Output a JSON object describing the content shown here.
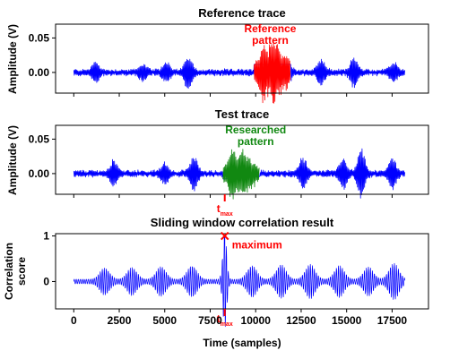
{
  "colors": {
    "trace": "#0000ff",
    "reference": "#ff0000",
    "researched": "#118811",
    "tmax": "#ff0000",
    "axis": "#000000"
  },
  "x_label": "Time (samples)",
  "x_ticks": [
    "0",
    "2500",
    "5000",
    "7500",
    "10000",
    "12500",
    "15000",
    "17500"
  ],
  "tmax_label": "t",
  "tmax_sub": "max",
  "chart_data": [
    {
      "type": "line",
      "title": "Reference trace",
      "ylabel": "Amplitude (V)",
      "xlim": [
        -1000,
        19500
      ],
      "ylim": [
        -0.03,
        0.07
      ],
      "y_ticks": [
        0.0,
        0.05
      ],
      "y_tick_labels": [
        "0.00",
        "0.05"
      ],
      "annotation": {
        "text_line1": "Reference",
        "text_line2": "pattern",
        "x": 10800,
        "y": 0.058
      },
      "highlight": {
        "name": "Reference pattern",
        "x_range": [
          9900,
          11900
        ]
      },
      "signal": {
        "x_range": [
          0,
          18200
        ],
        "baseline_amplitude": 0.004,
        "bursts": [
          {
            "x": 1200,
            "amplitude": 0.012
          },
          {
            "x": 3800,
            "amplitude": 0.01
          },
          {
            "x": 5100,
            "amplitude": 0.013
          },
          {
            "x": 6300,
            "amplitude": 0.022
          },
          {
            "x": 10400,
            "amplitude": 0.042
          },
          {
            "x": 11000,
            "amplitude": 0.045
          },
          {
            "x": 11700,
            "amplitude": 0.02
          },
          {
            "x": 13600,
            "amplitude": 0.017
          },
          {
            "x": 15400,
            "amplitude": 0.02
          },
          {
            "x": 17600,
            "amplitude": 0.012
          }
        ]
      }
    },
    {
      "type": "line",
      "title": "Test trace",
      "ylabel": "Amplitude (V)",
      "xlim": [
        -1000,
        19500
      ],
      "ylim": [
        -0.03,
        0.07
      ],
      "y_ticks": [
        0.0,
        0.05
      ],
      "y_tick_labels": [
        "0.00",
        "0.05"
      ],
      "annotation": {
        "text_line1": "Researched",
        "text_line2": "pattern",
        "x": 10000,
        "y": 0.058
      },
      "highlight": {
        "name": "Researched pattern",
        "x_range": [
          8200,
          10200
        ]
      },
      "signal": {
        "x_range": [
          0,
          18200
        ],
        "baseline_amplitude": 0.004,
        "bursts": [
          {
            "x": 2200,
            "amplitude": 0.017
          },
          {
            "x": 5000,
            "amplitude": 0.013
          },
          {
            "x": 6600,
            "amplitude": 0.022
          },
          {
            "x": 8700,
            "amplitude": 0.037
          },
          {
            "x": 9300,
            "amplitude": 0.032
          },
          {
            "x": 12600,
            "amplitude": 0.02
          },
          {
            "x": 14800,
            "amplitude": 0.02
          },
          {
            "x": 15800,
            "amplitude": 0.032
          },
          {
            "x": 17500,
            "amplitude": 0.02
          }
        ]
      }
    },
    {
      "type": "line",
      "title": "Sliding window correlation result",
      "ylabel_line1": "Correlation",
      "ylabel_line2": "score",
      "xlim": [
        -1000,
        19500
      ],
      "ylim": [
        -0.6,
        1.05
      ],
      "y_ticks": [
        0,
        1
      ],
      "y_tick_labels": [
        "0",
        "1"
      ],
      "annotation": {
        "text": "maximum",
        "x": 8300,
        "y": 1.0
      },
      "maximum": {
        "x": 8300,
        "y": 1.0
      },
      "signal": {
        "x_range": [
          0,
          18200
        ],
        "carrier_period": 110,
        "envelopes": [
          {
            "x": 1700,
            "amplitude": 0.25
          },
          {
            "x": 3200,
            "amplitude": 0.26
          },
          {
            "x": 4800,
            "amplitude": 0.28
          },
          {
            "x": 6500,
            "amplitude": 0.3
          },
          {
            "x": 8300,
            "amplitude": 1.0
          },
          {
            "x": 9800,
            "amplitude": 0.3
          },
          {
            "x": 11400,
            "amplitude": 0.32
          },
          {
            "x": 13000,
            "amplitude": 0.33
          },
          {
            "x": 14600,
            "amplitude": 0.3
          },
          {
            "x": 16200,
            "amplitude": 0.27
          },
          {
            "x": 17600,
            "amplitude": 0.35
          }
        ]
      }
    }
  ]
}
